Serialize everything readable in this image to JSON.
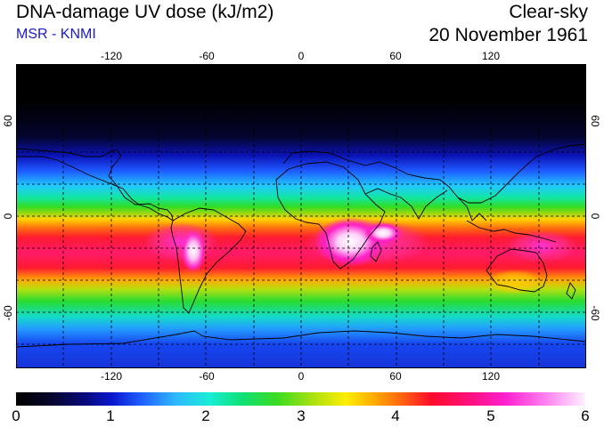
{
  "header": {
    "title": "DNA-damage UV dose (kJ/m2)",
    "source": "MSR - KNMI",
    "condition": "Clear-sky",
    "date": "20 November 1961"
  },
  "map": {
    "longitude_labels": [
      "-120",
      "-60",
      "0",
      "60",
      "120"
    ],
    "latitude_labels": [
      "60",
      "0",
      "-60"
    ]
  },
  "colorbar": {
    "tick_labels": [
      "0",
      "1",
      "2",
      "3",
      "4",
      "5",
      "6"
    ],
    "min": 0,
    "max": 6,
    "unit": "kJ/m2"
  },
  "colors": {
    "source_text": "#1a1acc",
    "low": "#000000",
    "mid": "#10e070",
    "high": "#ff0a2a",
    "peak": "#fff0ff"
  }
}
